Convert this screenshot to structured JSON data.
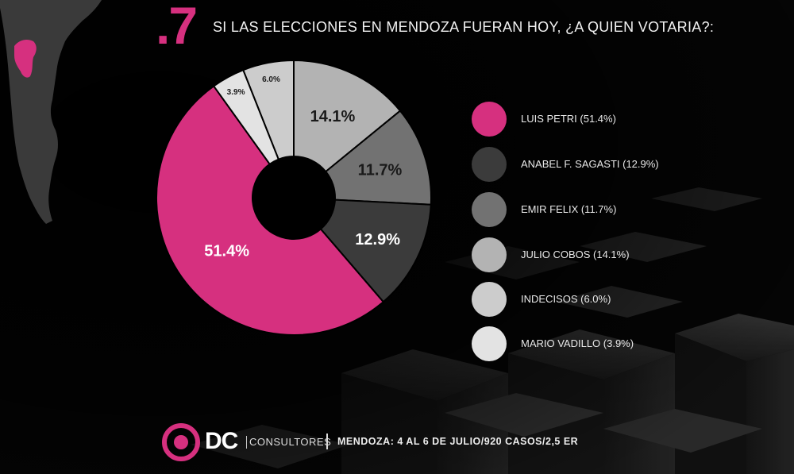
{
  "slide_number": ".7",
  "title": "SI LAS ELECCIONES EN MENDOZA FUERAN HOY, ¿A QUIEN VOTARIA?:",
  "chart_data": {
    "type": "pie",
    "donut": true,
    "series": [
      {
        "name": "LUIS PETRI",
        "value": 51.4,
        "label": "51.4%",
        "legend": "LUIS PETRI (51.4%)",
        "color": "#d6307f"
      },
      {
        "name": "ANABEL F. SAGASTI",
        "value": 12.9,
        "label": "12.9%",
        "legend": "ANABEL F. SAGASTI (12.9%)",
        "color": "#3b3b3b"
      },
      {
        "name": "EMIR FELIX",
        "value": 11.7,
        "label": "11.7%",
        "legend": "EMIR FELIX (11.7%)",
        "color": "#727272"
      },
      {
        "name": "JULIO COBOS",
        "value": 14.1,
        "label": "14.1%",
        "legend": "JULIO COBOS (14.1%)",
        "color": "#b3b3b3"
      },
      {
        "name": "INDECISOS",
        "value": 6.0,
        "label": "6.0%",
        "legend": "INDECISOS (6.0%)",
        "color": "#cccccc"
      },
      {
        "name": "MARIO VADILLO",
        "value": 3.9,
        "label": "3.9%",
        "legend": "MARIO VADILLO (3.9%)",
        "color": "#e3e3e3"
      }
    ],
    "legend_placement": "right"
  },
  "footer": {
    "brand": "DC",
    "consultores": "CONSULTORES",
    "info": "MENDOZA: 4 AL 6 DE JULIO/920 CASOS/2,5 ER"
  },
  "colors": {
    "accent": "#d6307f",
    "background": "#000000",
    "map_fill": "#3a3a3a"
  }
}
